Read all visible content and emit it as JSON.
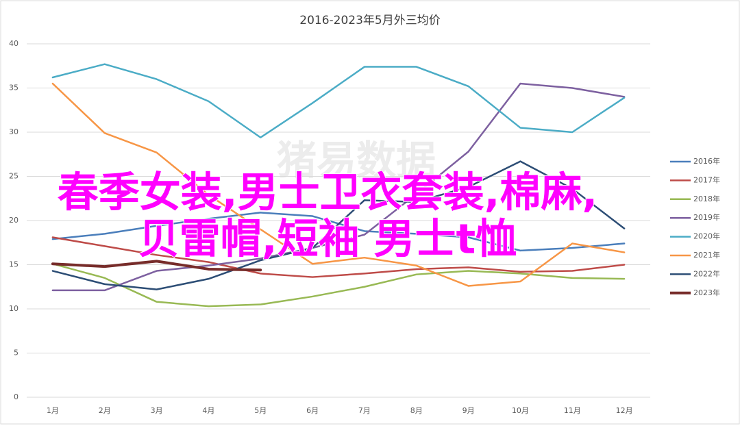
{
  "chart_data": {
    "type": "line",
    "title": "2016-2023年5月外三均价",
    "categories": [
      "1月",
      "2月",
      "3月",
      "4月",
      "5月",
      "6月",
      "7月",
      "8月",
      "9月",
      "10月",
      "11月",
      "12月"
    ],
    "ylim": [
      0,
      40
    ],
    "yticks": [
      0,
      5,
      10,
      15,
      20,
      25,
      30,
      35,
      40
    ],
    "grid": true,
    "legend": "right",
    "watermark": "猪易数据",
    "overlay_text": [
      "春季女装,男士卫衣套装,棉麻,",
      "贝雷帽,短袖 男士t恤"
    ],
    "series": [
      {
        "name": "2016年",
        "color": "#4a7ebb",
        "values": [
          17.9,
          18.5,
          19.4,
          20.2,
          20.9,
          20.5,
          18.8,
          18.5,
          18.1,
          16.6,
          16.9,
          17.4
        ]
      },
      {
        "name": "2017年",
        "color": "#be4b48",
        "values": [
          18.1,
          17.1,
          16.1,
          15.3,
          14.0,
          13.6,
          14.0,
          14.5,
          14.7,
          14.2,
          14.3,
          15.0
        ]
      },
      {
        "name": "2018年",
        "color": "#98b954",
        "values": [
          15.1,
          13.5,
          10.8,
          10.3,
          10.5,
          11.4,
          12.5,
          13.9,
          14.3,
          14.0,
          13.5,
          13.4
        ]
      },
      {
        "name": "2019年",
        "color": "#7d60a0",
        "values": [
          12.1,
          12.1,
          14.3,
          14.9,
          15.7,
          16.9,
          18.4,
          23.0,
          27.8,
          35.5,
          35.0,
          34.0
        ]
      },
      {
        "name": "2020年",
        "color": "#4bacc6",
        "values": [
          36.2,
          37.7,
          36.0,
          33.5,
          29.4,
          33.3,
          37.4,
          37.4,
          35.2,
          30.5,
          30.0,
          33.9
        ]
      },
      {
        "name": "2021年",
        "color": "#f79646",
        "values": [
          35.5,
          29.9,
          27.7,
          22.9,
          19.0,
          15.1,
          15.8,
          14.9,
          12.6,
          13.1,
          17.4,
          16.4
        ]
      },
      {
        "name": "2022年",
        "color": "#2c4d75",
        "values": [
          14.3,
          12.8,
          12.2,
          13.4,
          15.5,
          16.9,
          22.3,
          22.1,
          23.8,
          26.7,
          23.6,
          19.1
        ]
      },
      {
        "name": "2023年",
        "color": "#772c2a",
        "width": 4,
        "values": [
          15.1,
          14.8,
          15.4,
          14.5,
          14.4,
          null,
          null,
          null,
          null,
          null,
          null,
          null
        ]
      }
    ]
  }
}
